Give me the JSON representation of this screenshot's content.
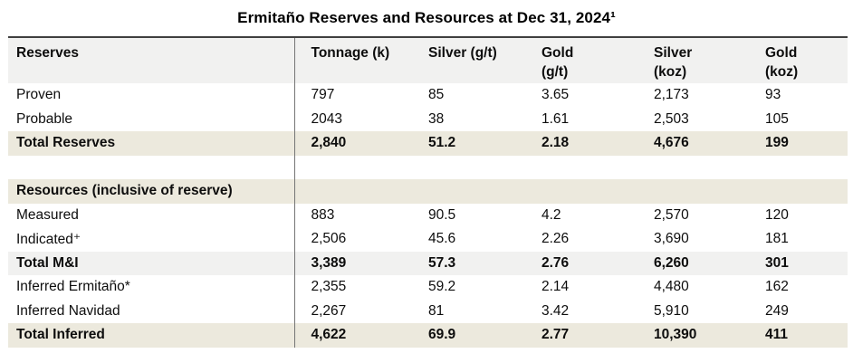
{
  "page": {
    "title": "Ermitaño Reserves and Resources at Dec 31, 2024¹"
  },
  "colors": {
    "header_row_bg": "#f1f1f0",
    "total_row_beige_bg": "#ece9dd",
    "total_mi_row_bg": "#f1f1f0",
    "column_divider": "#757575",
    "table_top_border": "#3f3f3f",
    "text": "#000000"
  },
  "table": {
    "columns": [
      {
        "line1": "Reserves",
        "line2": ""
      },
      {
        "line1": "Tonnage (k)",
        "line2": ""
      },
      {
        "line1": "Silver (g/t)",
        "line2": ""
      },
      {
        "line1": "Gold",
        "line2": "(g/t)"
      },
      {
        "line1": "Silver",
        "line2": "(koz)"
      },
      {
        "line1": "Gold",
        "line2": "(koz)"
      }
    ],
    "rows": [
      {
        "label": "Proven",
        "values": [
          "797",
          "85",
          "3.65",
          "2,173",
          "93"
        ],
        "style": "normal"
      },
      {
        "label": "Probable",
        "values": [
          "2043",
          "38",
          "1.61",
          "2,503",
          "105"
        ],
        "style": "normal"
      },
      {
        "label": "Total Reserves",
        "values": [
          "2,840",
          "51.2",
          "2.18",
          "4,676",
          "199"
        ],
        "style": "total-beige"
      },
      {
        "label": "",
        "values": [
          "",
          "",
          "",
          "",
          ""
        ],
        "style": "blank"
      },
      {
        "label": "Resources (inclusive of reserve)",
        "values": [
          "",
          "",
          "",
          "",
          ""
        ],
        "style": "section"
      },
      {
        "label": "Measured",
        "values": [
          "883",
          "90.5",
          "4.2",
          "2,570",
          "120"
        ],
        "style": "normal"
      },
      {
        "label": "Indicated⁺",
        "values": [
          "2,506",
          "45.6",
          "2.26",
          "3,690",
          "181"
        ],
        "style": "normal"
      },
      {
        "label": "Total M&I",
        "values": [
          "3,389",
          "57.3",
          "2.76",
          "6,260",
          "301"
        ],
        "style": "total-gray"
      },
      {
        "label": "Inferred Ermitaño*",
        "values": [
          "2,355",
          "59.2",
          "2.14",
          "4,480",
          "162"
        ],
        "style": "normal"
      },
      {
        "label": "Inferred Navidad",
        "values": [
          "2,267",
          "81",
          "3.42",
          "5,910",
          "249"
        ],
        "style": "normal"
      },
      {
        "label": "Total Inferred",
        "values": [
          "4,622",
          "69.9",
          "2.77",
          "10,390",
          "411"
        ],
        "style": "total-beige"
      }
    ]
  },
  "chart_data": {
    "type": "table",
    "title": "Ermitaño Reserves and Resources at Dec 31, 2024¹",
    "columns": [
      "Reserves",
      "Tonnage (k)",
      "Silver (g/t)",
      "Gold (g/t)",
      "Silver (koz)",
      "Gold (koz)"
    ],
    "rows": [
      [
        "Proven",
        797,
        85,
        3.65,
        2173,
        93
      ],
      [
        "Probable",
        2043,
        38,
        1.61,
        2503,
        105
      ],
      [
        "Total Reserves",
        2840,
        51.2,
        2.18,
        4676,
        199
      ],
      [
        "Resources (inclusive of reserve)",
        null,
        null,
        null,
        null,
        null
      ],
      [
        "Measured",
        883,
        90.5,
        4.2,
        2570,
        120
      ],
      [
        "Indicated⁺",
        2506,
        45.6,
        2.26,
        3690,
        181
      ],
      [
        "Total M&I",
        3389,
        57.3,
        2.76,
        6260,
        301
      ],
      [
        "Inferred Ermitaño*",
        2355,
        59.2,
        2.14,
        4480,
        162
      ],
      [
        "Inferred Navidad",
        2267,
        81,
        3.42,
        5910,
        249
      ],
      [
        "Total Inferred",
        4622,
        69.9,
        2.77,
        10390,
        411
      ]
    ]
  }
}
